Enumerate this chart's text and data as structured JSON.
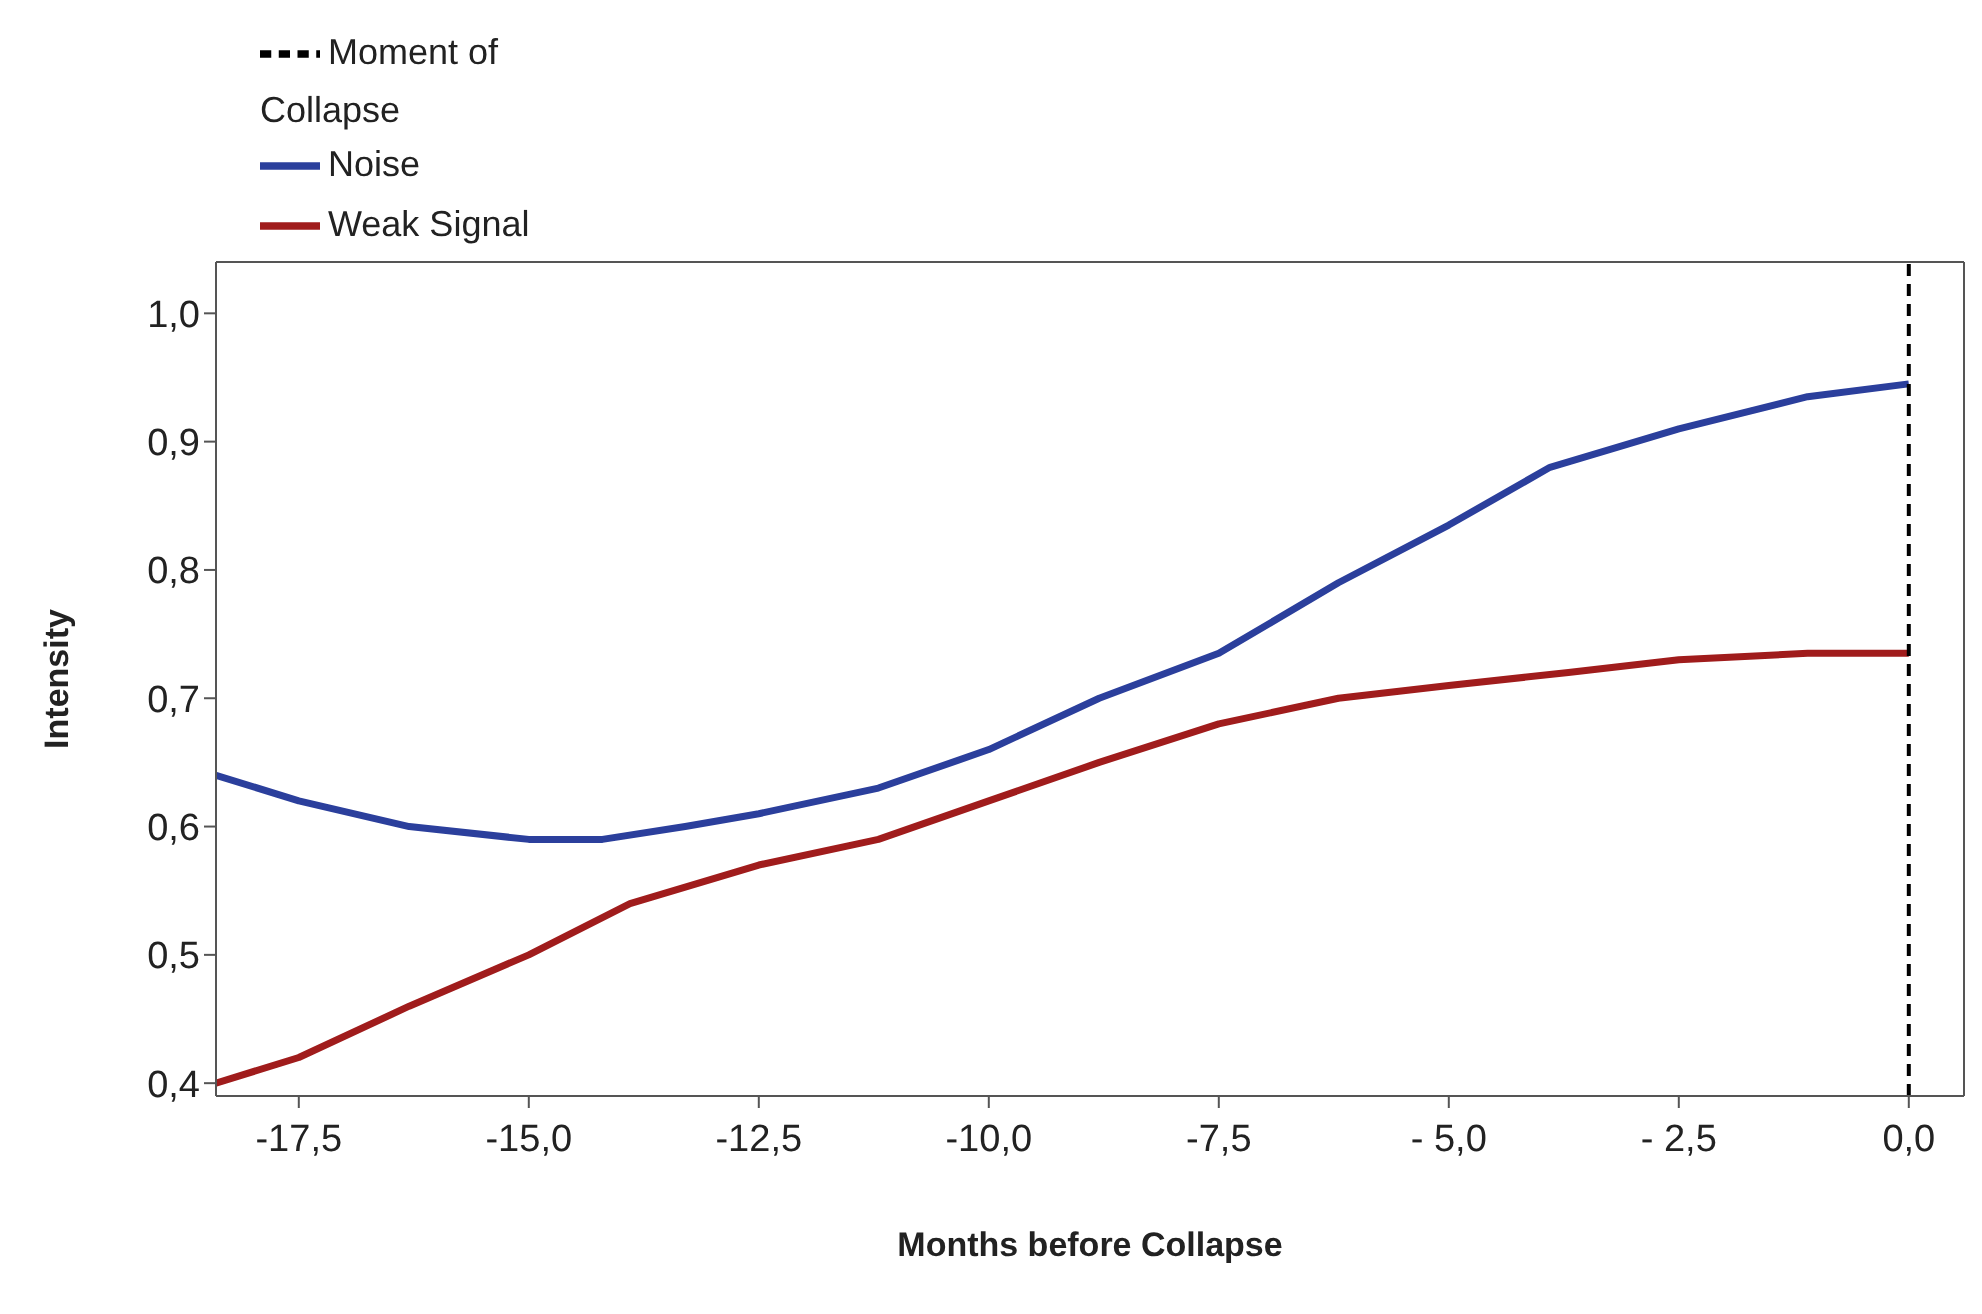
{
  "chart_data": {
    "type": "line",
    "xlabel": "Months before Collapse",
    "ylabel": "Intensity",
    "xlim": [
      -18.4,
      0.6
    ],
    "ylim": [
      0.39,
      1.04
    ],
    "xticks": [
      {
        "value": -17.5,
        "label": "-17,5"
      },
      {
        "value": -15,
        "label": "-15,0"
      },
      {
        "value": -12.5,
        "label": "-12,5"
      },
      {
        "value": -10,
        "label": "-10,0"
      },
      {
        "value": -7.5,
        "label": "-7,5"
      },
      {
        "value": -5,
        "label": "- 5,0"
      },
      {
        "value": -2.5,
        "label": "- 2,5"
      },
      {
        "value": 0,
        "label": "0,0"
      }
    ],
    "yticks": [
      {
        "value": 0.4,
        "label": "0,4"
      },
      {
        "value": 0.5,
        "label": "0,5"
      },
      {
        "value": 0.6,
        "label": "0,6"
      },
      {
        "value": 0.7,
        "label": "0,7"
      },
      {
        "value": 0.8,
        "label": "0,8"
      },
      {
        "value": 0.9,
        "label": "0,9"
      },
      {
        "value": 1.0,
        "label": "1,0"
      }
    ],
    "series": [
      {
        "name": "Weak Signal",
        "color": "#a01c1c",
        "x": [
          -18.4,
          -17.5,
          -16.3,
          -15,
          -13.9,
          -12.5,
          -11.2,
          -10,
          -8.8,
          -7.5,
          -6.2,
          -5,
          -3.7,
          -2.5,
          -1.1,
          0
        ],
        "values": [
          0.4,
          0.42,
          0.46,
          0.5,
          0.54,
          0.57,
          0.59,
          0.62,
          0.65,
          0.68,
          0.7,
          0.71,
          0.72,
          0.73,
          0.735,
          0.735
        ]
      },
      {
        "name": "Noise",
        "color": "#2b3f9c",
        "x": [
          -18.4,
          -17.5,
          -16.3,
          -15,
          -14.2,
          -13.3,
          -12.5,
          -11.2,
          -10,
          -8.8,
          -7.5,
          -6.2,
          -5,
          -3.9,
          -2.5,
          -1.1,
          0
        ],
        "values": [
          0.64,
          0.62,
          0.6,
          0.59,
          0.59,
          0.6,
          0.61,
          0.63,
          0.66,
          0.7,
          0.735,
          0.79,
          0.835,
          0.88,
          0.91,
          0.935,
          0.945
        ]
      }
    ],
    "ref_lines": [
      {
        "axis": "x",
        "value": 0,
        "label": "Moment of Collapse",
        "color": "#000000",
        "line_style": "dashed"
      }
    ],
    "legend": "top left",
    "grid": false,
    "marker": "none",
    "line_style": "solid"
  }
}
